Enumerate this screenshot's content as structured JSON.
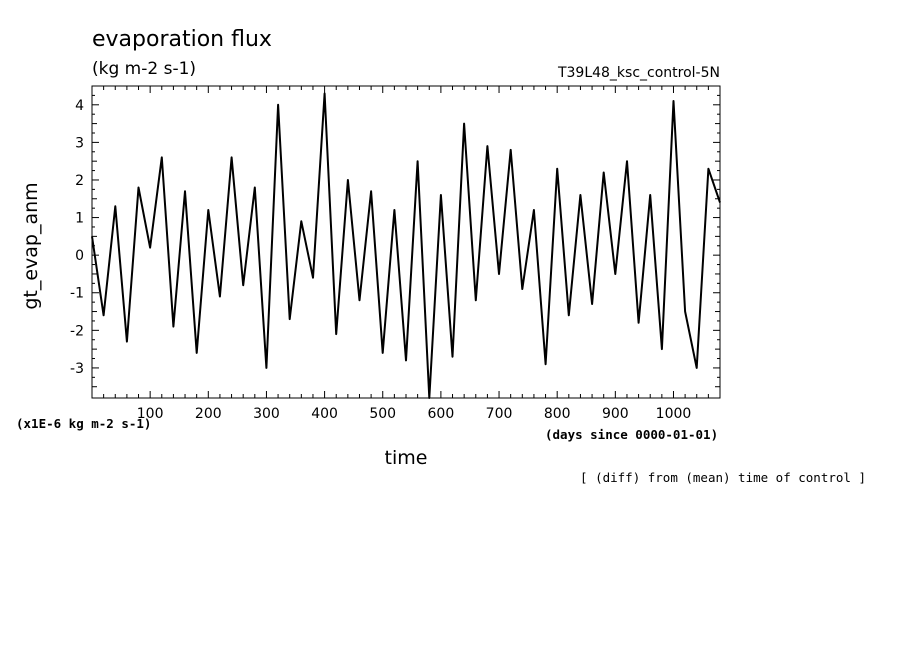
{
  "chart_data": {
    "type": "line",
    "title": "evaporation flux",
    "units": "(kg m-2 s-1)",
    "case_label": "T39L48_ksc_control-5N",
    "xlabel": "time",
    "x_units_label": "(days since 0000-01-01)",
    "ylabel": "gt_evap_anm",
    "y_scale_label": "(x1E-6 kg m-2 s-1)",
    "note": "[ (diff) from (mean) time of control ]",
    "xlim": [
      0,
      1080
    ],
    "ylim": [
      -3.8,
      4.5
    ],
    "x_ticks": [
      100,
      200,
      300,
      400,
      500,
      600,
      700,
      800,
      900,
      1000
    ],
    "y_ticks": [
      -3,
      -2,
      -1,
      0,
      1,
      2,
      3,
      4
    ],
    "grid": false,
    "series": [
      {
        "x": [
          0,
          20,
          40,
          60,
          80,
          100,
          120,
          140,
          160,
          180,
          200,
          220,
          240,
          260,
          280,
          300,
          320,
          340,
          360,
          380,
          400,
          420,
          440,
          460,
          480,
          500,
          520,
          540,
          560,
          580,
          600,
          620,
          640,
          660,
          680,
          700,
          720,
          740,
          760,
          780,
          800,
          820,
          840,
          860,
          880,
          900,
          920,
          940,
          960,
          980,
          1000,
          1020,
          1040,
          1060,
          1080
        ],
        "values": [
          0.5,
          -1.6,
          1.3,
          -2.3,
          1.8,
          0.2,
          2.6,
          -1.9,
          1.7,
          -2.6,
          1.2,
          -1.1,
          2.6,
          -0.8,
          1.8,
          -3.0,
          4.0,
          -1.7,
          0.9,
          -0.6,
          4.3,
          -2.1,
          2.0,
          -1.2,
          1.7,
          -2.6,
          1.2,
          -2.8,
          2.5,
          -3.8,
          1.6,
          -2.7,
          3.5,
          -1.2,
          2.9,
          -0.5,
          2.8,
          -0.9,
          1.2,
          -2.9,
          2.3,
          -1.6,
          1.6,
          -1.3,
          2.2,
          -0.5,
          2.5,
          -1.8,
          1.6,
          -2.5,
          4.1,
          -1.5,
          -3.0,
          2.3,
          1.4
        ]
      }
    ]
  }
}
